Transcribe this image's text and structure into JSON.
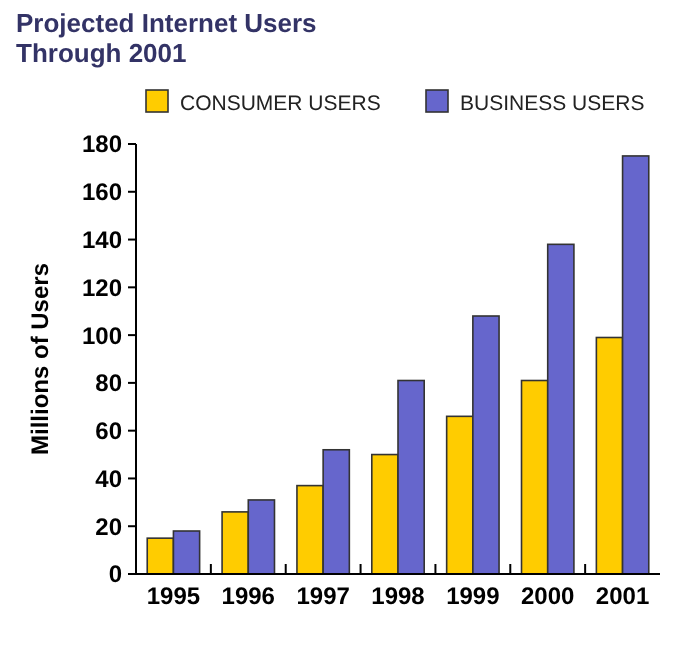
{
  "chart_data": {
    "type": "bar",
    "title": "Projected Internet Users Through 2001",
    "ylabel": "Millions of Users",
    "categories": [
      "1995",
      "1996",
      "1997",
      "1998",
      "1999",
      "2000",
      "2001"
    ],
    "series": [
      {
        "name": "CONSUMER USERS",
        "color": "#ffcc00",
        "values": [
          15,
          26,
          37,
          50,
          66,
          81,
          99
        ]
      },
      {
        "name": "BUSINESS USERS",
        "color": "#6666cc",
        "values": [
          18,
          31,
          52,
          81,
          108,
          138,
          175
        ]
      }
    ],
    "ylim": [
      0,
      180
    ],
    "yticks": [
      0,
      20,
      40,
      60,
      80,
      100,
      120,
      140,
      160,
      180
    ],
    "grid": false,
    "legend": "top"
  }
}
